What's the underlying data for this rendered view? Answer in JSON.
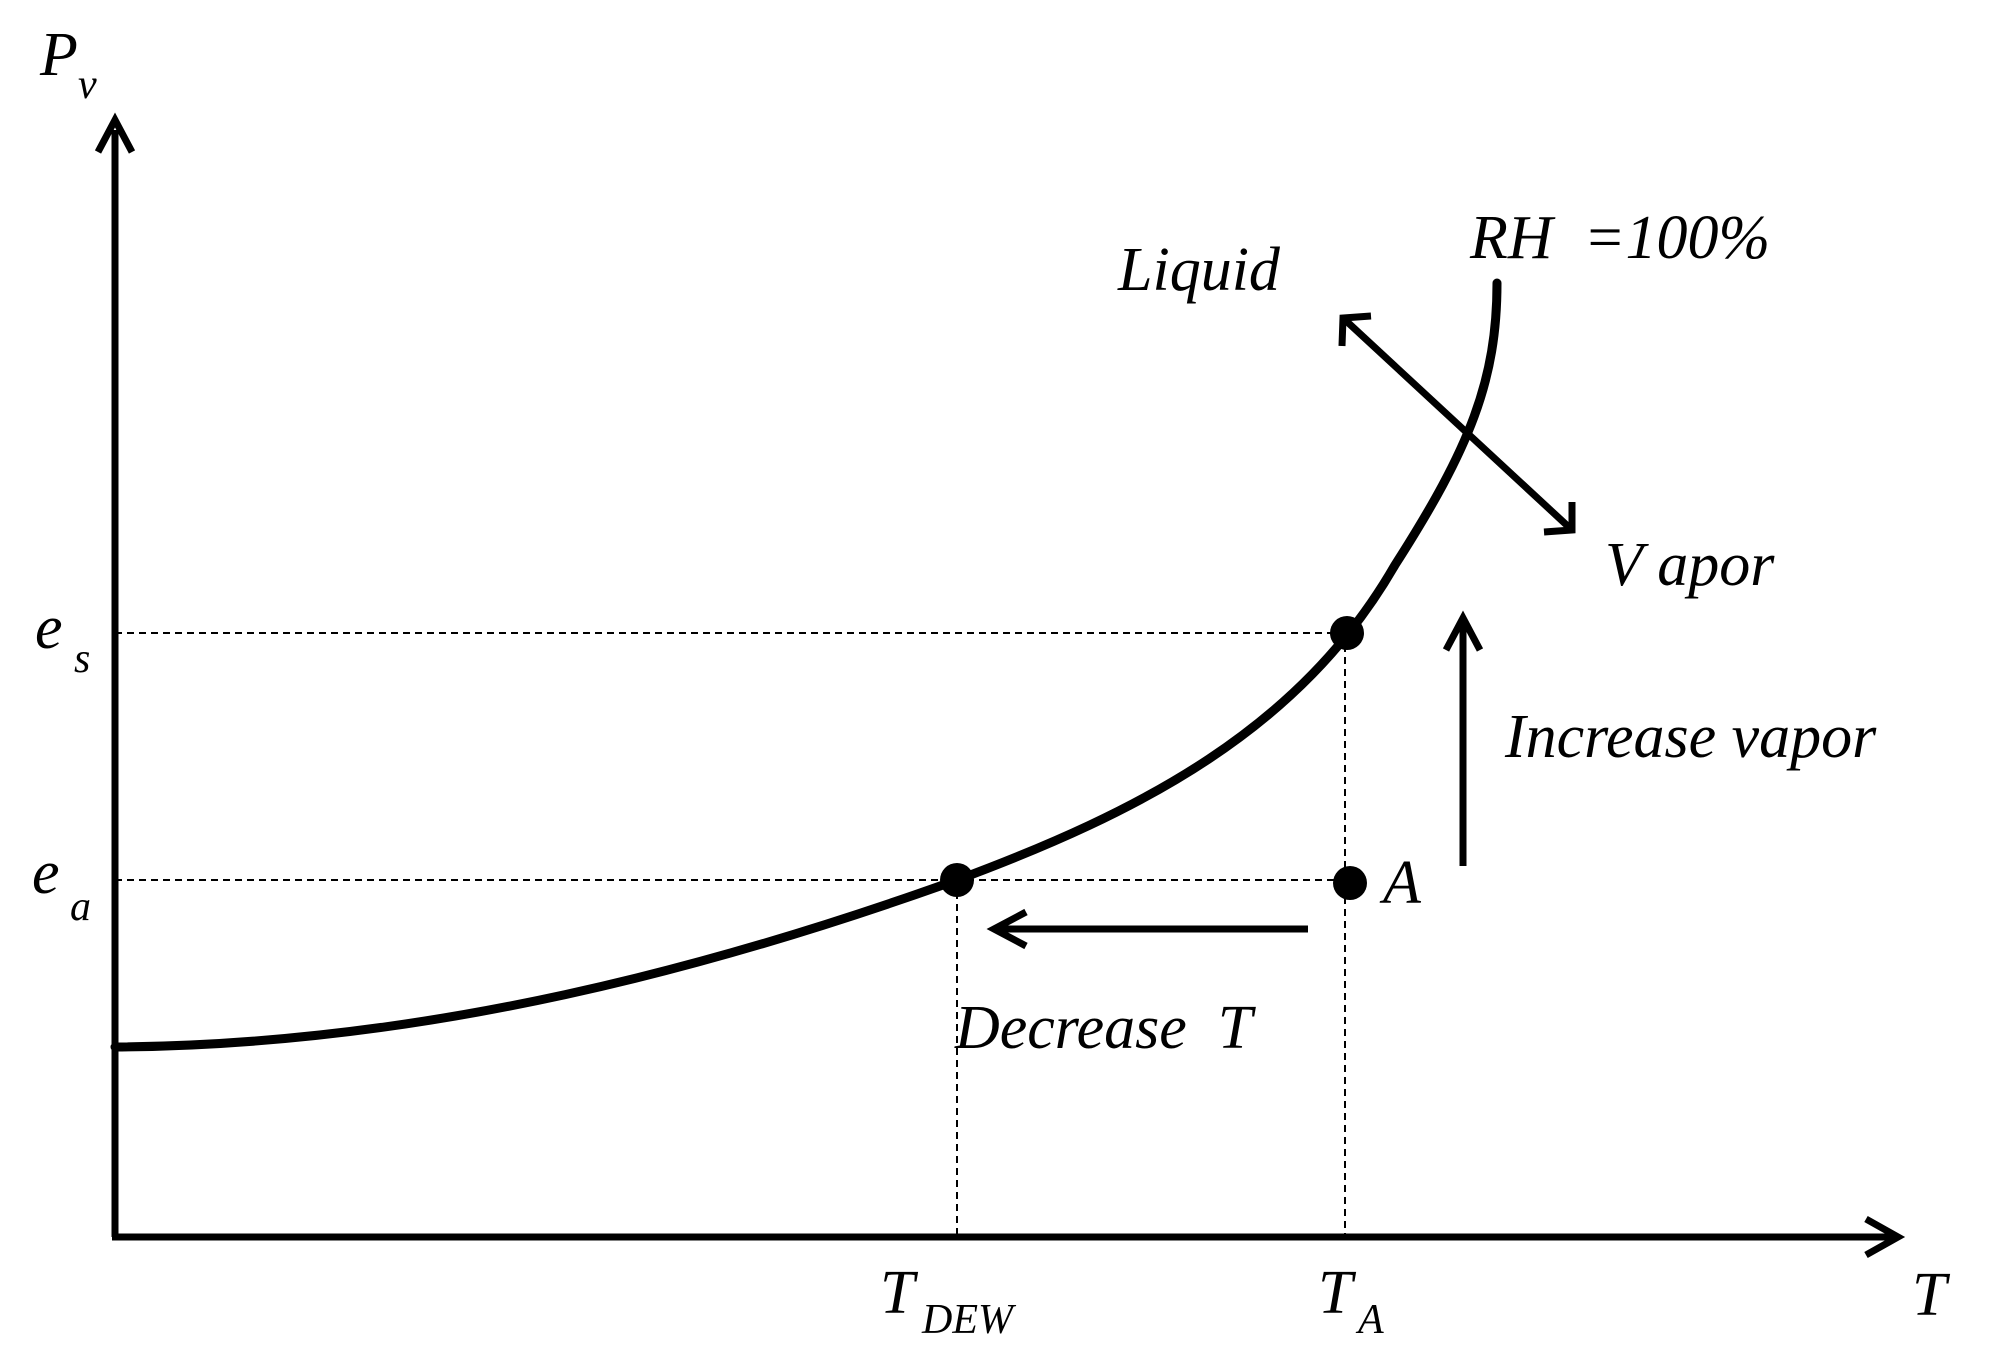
{
  "axes": {
    "y_symbol": "P",
    "y_subscript": "v",
    "x_symbol": "T"
  },
  "levels": {
    "es": {
      "symbol": "e",
      "subscript": "s"
    },
    "ea": {
      "symbol": "e",
      "subscript": "a"
    }
  },
  "ticks": {
    "t_dew": {
      "symbol": "T",
      "subscript": "DEW"
    },
    "t_a": {
      "symbol": "T",
      "subscript": "A"
    }
  },
  "labels": {
    "curve": "RH  =100%",
    "liquid": "Liquid",
    "vapor": "V apor",
    "point_a": "A",
    "increase_vapor": "Increase vapor",
    "decrease_t": "Decrease  T"
  },
  "colors": {
    "ink": "#000000",
    "background": "#ffffff"
  }
}
